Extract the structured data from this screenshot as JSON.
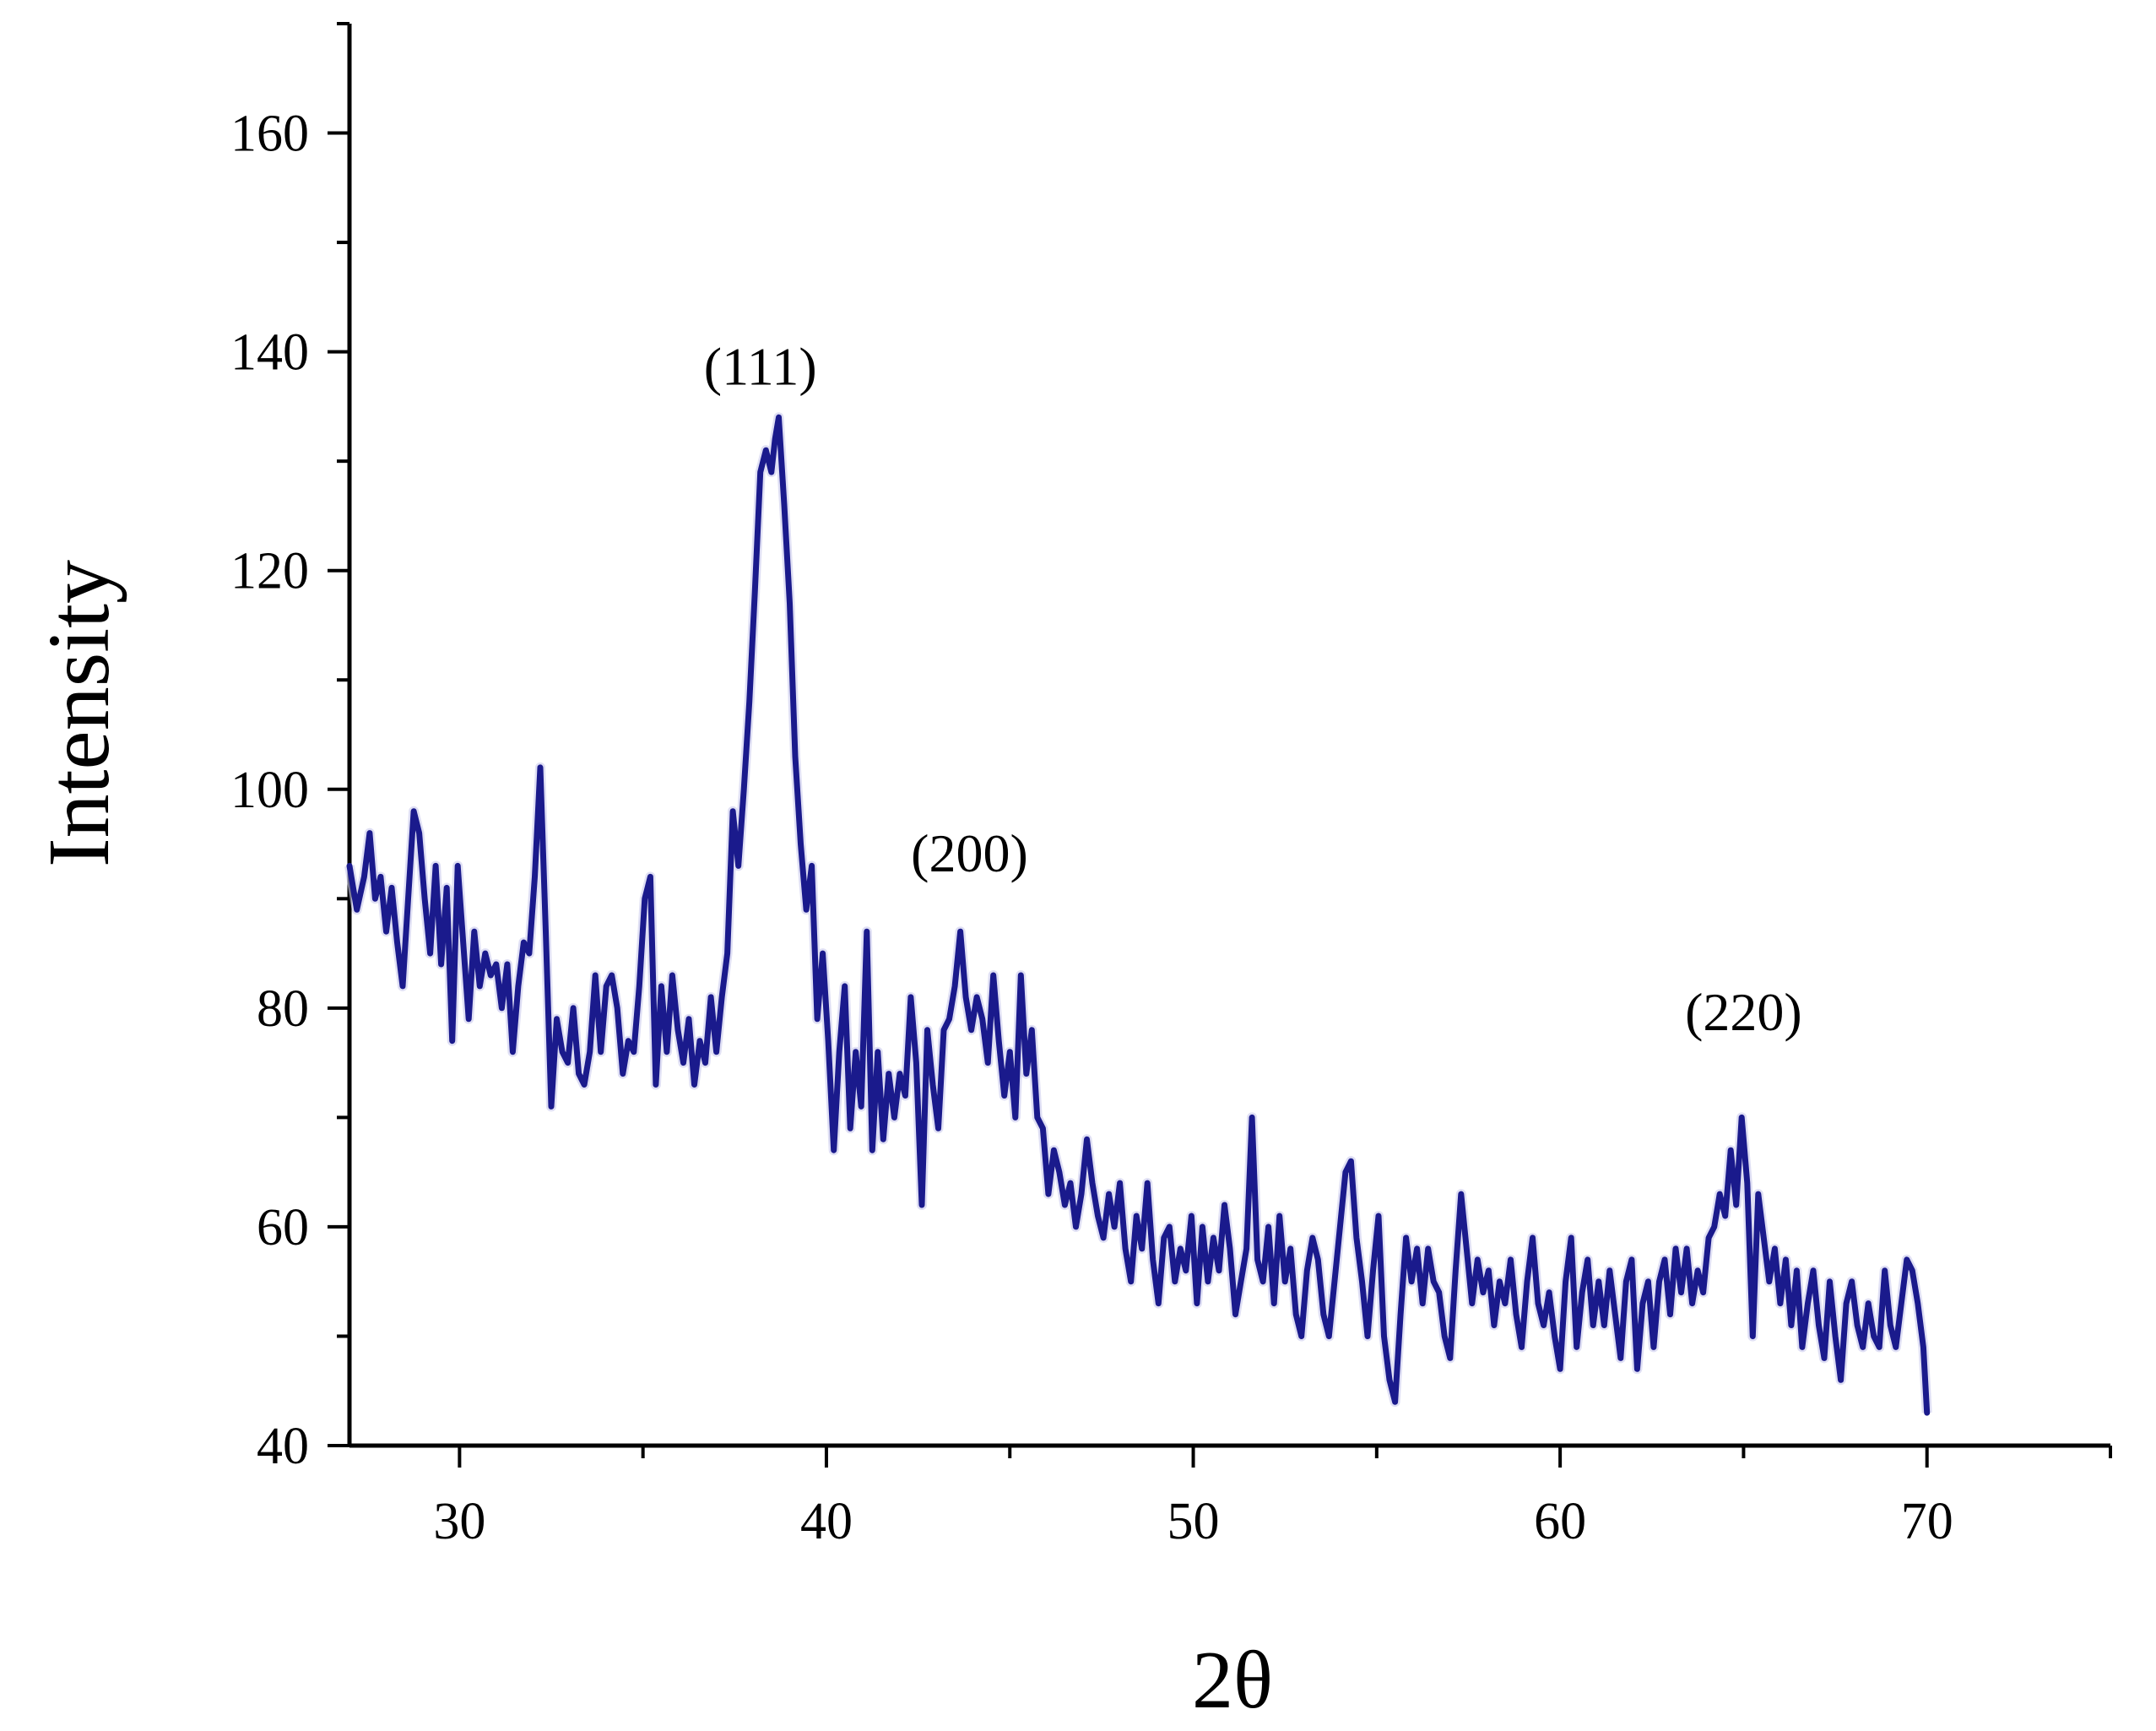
{
  "chart_data": {
    "type": "line",
    "title": "",
    "xlabel": "2θ",
    "ylabel": "Intensity",
    "xlim": [
      27,
      75
    ],
    "ylim": [
      40,
      170
    ],
    "x_ticks": [
      30,
      40,
      50,
      60,
      70
    ],
    "y_ticks": [
      40,
      60,
      80,
      100,
      120,
      140,
      160
    ],
    "x_minor_step": 5,
    "y_minor_step": 10,
    "grid": false,
    "legend": "none",
    "line_color": "#1a1a8c",
    "annotations": [
      {
        "text": "(111)",
        "x": 38.2,
        "y": 137
      },
      {
        "text": "(200)",
        "x": 43.9,
        "y": 92.5
      },
      {
        "text": "(220)",
        "x": 65.0,
        "y": 78
      }
    ],
    "series": [
      {
        "points": [
          [
            27.0,
            93
          ],
          [
            27.2,
            89
          ],
          [
            27.4,
            92
          ],
          [
            27.55,
            96
          ],
          [
            27.7,
            90
          ],
          [
            27.85,
            92
          ],
          [
            28.0,
            87
          ],
          [
            28.15,
            91
          ],
          [
            28.3,
            86
          ],
          [
            28.45,
            82
          ],
          [
            28.6,
            90
          ],
          [
            28.75,
            98
          ],
          [
            28.9,
            96
          ],
          [
            29.05,
            90
          ],
          [
            29.2,
            85
          ],
          [
            29.35,
            93
          ],
          [
            29.5,
            84
          ],
          [
            29.65,
            91
          ],
          [
            29.8,
            77
          ],
          [
            29.95,
            93
          ],
          [
            30.1,
            86
          ],
          [
            30.25,
            79
          ],
          [
            30.4,
            87
          ],
          [
            30.55,
            82
          ],
          [
            30.7,
            85
          ],
          [
            30.85,
            83
          ],
          [
            31.0,
            84
          ],
          [
            31.15,
            80
          ],
          [
            31.3,
            84
          ],
          [
            31.45,
            76
          ],
          [
            31.6,
            82
          ],
          [
            31.75,
            86
          ],
          [
            31.9,
            85
          ],
          [
            32.05,
            92
          ],
          [
            32.2,
            102
          ],
          [
            32.35,
            87
          ],
          [
            32.5,
            71
          ],
          [
            32.65,
            79
          ],
          [
            32.8,
            76
          ],
          [
            32.95,
            75
          ],
          [
            33.1,
            80
          ],
          [
            33.25,
            74
          ],
          [
            33.4,
            73
          ],
          [
            33.55,
            76
          ],
          [
            33.7,
            83
          ],
          [
            33.85,
            76
          ],
          [
            34.0,
            82
          ],
          [
            34.15,
            83
          ],
          [
            34.3,
            80
          ],
          [
            34.45,
            74
          ],
          [
            34.6,
            77
          ],
          [
            34.75,
            76
          ],
          [
            34.9,
            82
          ],
          [
            35.05,
            90
          ],
          [
            35.2,
            92
          ],
          [
            35.35,
            73
          ],
          [
            35.5,
            82
          ],
          [
            35.65,
            76
          ],
          [
            35.8,
            83
          ],
          [
            35.95,
            78
          ],
          [
            36.1,
            75
          ],
          [
            36.25,
            79
          ],
          [
            36.4,
            73
          ],
          [
            36.55,
            77
          ],
          [
            36.7,
            75
          ],
          [
            36.85,
            81
          ],
          [
            37.0,
            76
          ],
          [
            37.15,
            81
          ],
          [
            37.3,
            85
          ],
          [
            37.45,
            98
          ],
          [
            37.6,
            93
          ],
          [
            37.75,
            100
          ],
          [
            37.9,
            108
          ],
          [
            38.05,
            118
          ],
          [
            38.2,
            129
          ],
          [
            38.35,
            131
          ],
          [
            38.5,
            129
          ],
          [
            38.6,
            132
          ],
          [
            38.7,
            134
          ],
          [
            38.85,
            126
          ],
          [
            39.0,
            117
          ],
          [
            39.15,
            103
          ],
          [
            39.3,
            95
          ],
          [
            39.45,
            89
          ],
          [
            39.6,
            93
          ],
          [
            39.75,
            79
          ],
          [
            39.9,
            85
          ],
          [
            40.05,
            77
          ],
          [
            40.2,
            67
          ],
          [
            40.35,
            76
          ],
          [
            40.5,
            82
          ],
          [
            40.65,
            69
          ],
          [
            40.8,
            76
          ],
          [
            40.95,
            71
          ],
          [
            41.1,
            87
          ],
          [
            41.25,
            67
          ],
          [
            41.4,
            76
          ],
          [
            41.55,
            68
          ],
          [
            41.7,
            74
          ],
          [
            41.85,
            70
          ],
          [
            42.0,
            74
          ],
          [
            42.15,
            72
          ],
          [
            42.3,
            81
          ],
          [
            42.45,
            75
          ],
          [
            42.6,
            62
          ],
          [
            42.75,
            78
          ],
          [
            42.9,
            73
          ],
          [
            43.05,
            69
          ],
          [
            43.2,
            78
          ],
          [
            43.35,
            79
          ],
          [
            43.5,
            82
          ],
          [
            43.65,
            87
          ],
          [
            43.8,
            81
          ],
          [
            43.95,
            78
          ],
          [
            44.1,
            81
          ],
          [
            44.25,
            79
          ],
          [
            44.4,
            75
          ],
          [
            44.55,
            83
          ],
          [
            44.7,
            77
          ],
          [
            44.85,
            72
          ],
          [
            45.0,
            76
          ],
          [
            45.15,
            70
          ],
          [
            45.3,
            83
          ],
          [
            45.45,
            74
          ],
          [
            45.6,
            78
          ],
          [
            45.75,
            70
          ],
          [
            45.9,
            69
          ],
          [
            46.05,
            63
          ],
          [
            46.2,
            67
          ],
          [
            46.35,
            65
          ],
          [
            46.5,
            62
          ],
          [
            46.65,
            64
          ],
          [
            46.8,
            60
          ],
          [
            46.95,
            63
          ],
          [
            47.1,
            68
          ],
          [
            47.25,
            64
          ],
          [
            47.4,
            61
          ],
          [
            47.55,
            59
          ],
          [
            47.7,
            63
          ],
          [
            47.85,
            60
          ],
          [
            48.0,
            64
          ],
          [
            48.15,
            58
          ],
          [
            48.3,
            55
          ],
          [
            48.45,
            61
          ],
          [
            48.6,
            58
          ],
          [
            48.75,
            64
          ],
          [
            48.9,
            57
          ],
          [
            49.05,
            53
          ],
          [
            49.2,
            59
          ],
          [
            49.35,
            60
          ],
          [
            49.5,
            55
          ],
          [
            49.65,
            58
          ],
          [
            49.8,
            56
          ],
          [
            49.95,
            61
          ],
          [
            50.1,
            53
          ],
          [
            50.25,
            60
          ],
          [
            50.4,
            55
          ],
          [
            50.55,
            59
          ],
          [
            50.7,
            56
          ],
          [
            50.85,
            62
          ],
          [
            51.0,
            58
          ],
          [
            51.15,
            52
          ],
          [
            51.3,
            55
          ],
          [
            51.45,
            58
          ],
          [
            51.6,
            70
          ],
          [
            51.75,
            57
          ],
          [
            51.9,
            55
          ],
          [
            52.05,
            60
          ],
          [
            52.2,
            53
          ],
          [
            52.35,
            61
          ],
          [
            52.5,
            55
          ],
          [
            52.65,
            58
          ],
          [
            52.8,
            52
          ],
          [
            52.95,
            50
          ],
          [
            53.1,
            56
          ],
          [
            53.25,
            59
          ],
          [
            53.4,
            57
          ],
          [
            53.55,
            52
          ],
          [
            53.7,
            50
          ],
          [
            53.85,
            55
          ],
          [
            54.0,
            60
          ],
          [
            54.15,
            65
          ],
          [
            54.3,
            66
          ],
          [
            54.45,
            59
          ],
          [
            54.6,
            55
          ],
          [
            54.75,
            50
          ],
          [
            54.9,
            56
          ],
          [
            55.05,
            61
          ],
          [
            55.2,
            50
          ],
          [
            55.35,
            46
          ],
          [
            55.5,
            44
          ],
          [
            55.65,
            52
          ],
          [
            55.8,
            59
          ],
          [
            55.95,
            55
          ],
          [
            56.1,
            58
          ],
          [
            56.25,
            53
          ],
          [
            56.4,
            58
          ],
          [
            56.55,
            55
          ],
          [
            56.7,
            54
          ],
          [
            56.85,
            50
          ],
          [
            57.0,
            48
          ],
          [
            57.15,
            56
          ],
          [
            57.3,
            63
          ],
          [
            57.45,
            58
          ],
          [
            57.6,
            53
          ],
          [
            57.75,
            57
          ],
          [
            57.9,
            54
          ],
          [
            58.05,
            56
          ],
          [
            58.2,
            51
          ],
          [
            58.35,
            55
          ],
          [
            58.5,
            53
          ],
          [
            58.65,
            57
          ],
          [
            58.8,
            52
          ],
          [
            58.95,
            49
          ],
          [
            59.1,
            55
          ],
          [
            59.25,
            59
          ],
          [
            59.4,
            53
          ],
          [
            59.55,
            51
          ],
          [
            59.7,
            54
          ],
          [
            59.85,
            50
          ],
          [
            60.0,
            47
          ],
          [
            60.15,
            55
          ],
          [
            60.3,
            59
          ],
          [
            60.45,
            49
          ],
          [
            60.6,
            54
          ],
          [
            60.75,
            57
          ],
          [
            60.9,
            51
          ],
          [
            61.05,
            55
          ],
          [
            61.2,
            51
          ],
          [
            61.35,
            56
          ],
          [
            61.5,
            52
          ],
          [
            61.65,
            48
          ],
          [
            61.8,
            55
          ],
          [
            61.95,
            57
          ],
          [
            62.1,
            47
          ],
          [
            62.25,
            53
          ],
          [
            62.4,
            55
          ],
          [
            62.55,
            49
          ],
          [
            62.7,
            55
          ],
          [
            62.85,
            57
          ],
          [
            63.0,
            52
          ],
          [
            63.15,
            58
          ],
          [
            63.3,
            54
          ],
          [
            63.45,
            58
          ],
          [
            63.6,
            53
          ],
          [
            63.75,
            56
          ],
          [
            63.9,
            54
          ],
          [
            64.05,
            59
          ],
          [
            64.2,
            60
          ],
          [
            64.35,
            63
          ],
          [
            64.5,
            61
          ],
          [
            64.65,
            67
          ],
          [
            64.8,
            62
          ],
          [
            64.95,
            70
          ],
          [
            65.1,
            64
          ],
          [
            65.25,
            50
          ],
          [
            65.4,
            63
          ],
          [
            65.55,
            59
          ],
          [
            65.7,
            55
          ],
          [
            65.85,
            58
          ],
          [
            66.0,
            53
          ],
          [
            66.15,
            57
          ],
          [
            66.3,
            51
          ],
          [
            66.45,
            56
          ],
          [
            66.6,
            49
          ],
          [
            66.75,
            53
          ],
          [
            66.9,
            56
          ],
          [
            67.05,
            51
          ],
          [
            67.2,
            48
          ],
          [
            67.35,
            55
          ],
          [
            67.5,
            50
          ],
          [
            67.65,
            46
          ],
          [
            67.8,
            53
          ],
          [
            67.95,
            55
          ],
          [
            68.1,
            51
          ],
          [
            68.25,
            49
          ],
          [
            68.4,
            53
          ],
          [
            68.55,
            50
          ],
          [
            68.7,
            49
          ],
          [
            68.85,
            56
          ],
          [
            69.0,
            51
          ],
          [
            69.15,
            49
          ],
          [
            69.3,
            53
          ],
          [
            69.45,
            57
          ],
          [
            69.6,
            56
          ],
          [
            69.75,
            53
          ],
          [
            69.9,
            49
          ],
          [
            70.0,
            43
          ]
        ]
      }
    ]
  }
}
